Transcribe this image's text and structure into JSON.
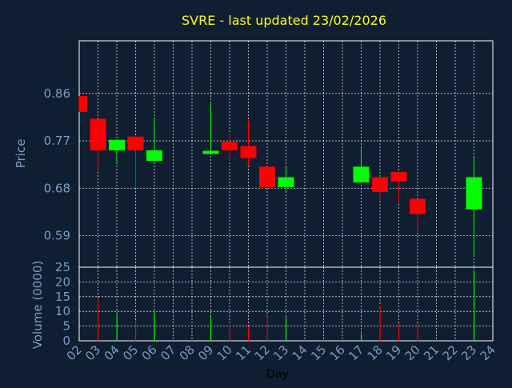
{
  "title": "SVRE - last updated 23/02/2026",
  "colors": {
    "background": "#0f1e31",
    "frame": "#ffffff",
    "grid": "#ffffff",
    "title": "#ffff00",
    "axis_text": "#7d9cc4",
    "up": "#00ff00",
    "down": "#ff0000"
  },
  "chart_data": [
    {
      "type": "candlestick",
      "ylabel": "Price",
      "ylim": [
        0.53,
        0.96
      ],
      "yticks": [
        0.59,
        0.68,
        0.77,
        0.86
      ],
      "grid": true,
      "candles": [
        {
          "day": 2,
          "open": 0.855,
          "close": 0.825,
          "high": 0.855,
          "low": 0.825
        },
        {
          "day": 3,
          "open": 0.812,
          "close": 0.752,
          "high": 0.812,
          "low": 0.711
        },
        {
          "day": 4,
          "open": 0.752,
          "close": 0.772,
          "high": 0.772,
          "low": 0.727
        },
        {
          "day": 5,
          "open": 0.778,
          "close": 0.752,
          "high": 0.778,
          "low": 0.682
        },
        {
          "day": 6,
          "open": 0.732,
          "close": 0.752,
          "high": 0.812,
          "low": 0.732
        },
        {
          "day": 9,
          "open": 0.745,
          "close": 0.751,
          "high": 0.843,
          "low": 0.745
        },
        {
          "day": 10,
          "open": 0.768,
          "close": 0.752,
          "high": 0.784,
          "low": 0.732
        },
        {
          "day": 11,
          "open": 0.76,
          "close": 0.737,
          "high": 0.812,
          "low": 0.722
        },
        {
          "day": 12,
          "open": 0.721,
          "close": 0.682,
          "high": 0.721,
          "low": 0.682
        },
        {
          "day": 13,
          "open": 0.682,
          "close": 0.701,
          "high": 0.721,
          "low": 0.675
        },
        {
          "day": 17,
          "open": 0.691,
          "close": 0.721,
          "high": 0.758,
          "low": 0.691
        },
        {
          "day": 18,
          "open": 0.701,
          "close": 0.673,
          "high": 0.701,
          "low": 0.66
        },
        {
          "day": 19,
          "open": 0.711,
          "close": 0.693,
          "high": 0.711,
          "low": 0.65
        },
        {
          "day": 20,
          "open": 0.66,
          "close": 0.631,
          "high": 0.66,
          "low": 0.6
        },
        {
          "day": 23,
          "open": 0.64,
          "close": 0.701,
          "high": 0.739,
          "low": 0.55
        }
      ]
    },
    {
      "type": "bar",
      "ylabel": "Volume (0000)",
      "xlabel": "Day",
      "ylim": [
        0,
        25
      ],
      "yticks": [
        0,
        5,
        10,
        15,
        20,
        25
      ],
      "xticks": [
        "02",
        "03",
        "04",
        "05",
        "06",
        "07",
        "08",
        "09",
        "10",
        "11",
        "12",
        "13",
        "14",
        "15",
        "16",
        "17",
        "18",
        "19",
        "20",
        "21",
        "22",
        "23",
        "24"
      ],
      "grid": true,
      "bars": [
        {
          "day": 3,
          "value": 14.5,
          "direction": "down"
        },
        {
          "day": 4,
          "value": 9,
          "direction": "up"
        },
        {
          "day": 5,
          "value": 7,
          "direction": "down"
        },
        {
          "day": 6,
          "value": 10,
          "direction": "up"
        },
        {
          "day": 9,
          "value": 8,
          "direction": "up"
        },
        {
          "day": 10,
          "value": 5.5,
          "direction": "down"
        },
        {
          "day": 11,
          "value": 5,
          "direction": "down"
        },
        {
          "day": 12,
          "value": 8.5,
          "direction": "down"
        },
        {
          "day": 13,
          "value": 8,
          "direction": "up"
        },
        {
          "day": 17,
          "value": 2.5,
          "direction": "up"
        },
        {
          "day": 18,
          "value": 12,
          "direction": "down"
        },
        {
          "day": 19,
          "value": 6,
          "direction": "down"
        },
        {
          "day": 20,
          "value": 6,
          "direction": "down"
        },
        {
          "day": 23,
          "value": 24,
          "direction": "up"
        }
      ]
    }
  ]
}
